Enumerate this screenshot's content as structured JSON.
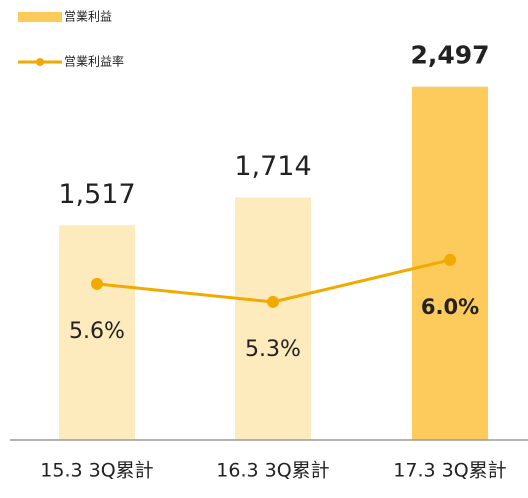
{
  "chart_data": {
    "type": "bar-line",
    "categories": [
      "15.3 3Q累計",
      "16.3 3Q累計",
      "17.3 3Q累計"
    ],
    "series": [
      {
        "name": "営業利益",
        "type": "bar",
        "colors": [
          "#fdebbd",
          "#fdebbd",
          "#fccb5c"
        ],
        "values": [
          1517,
          1714,
          2497
        ],
        "value_labels": [
          "1,517",
          "1,714",
          "2,497"
        ],
        "bold": [
          false,
          false,
          true
        ]
      },
      {
        "name": "営業利益率",
        "type": "line",
        "axis": "y2",
        "color": "#f2a900",
        "values": [
          5.6,
          5.3,
          6.0
        ],
        "value_labels": [
          "5.6%",
          "5.3%",
          "6.0%"
        ],
        "bold": [
          false,
          false,
          true
        ]
      }
    ],
    "ylim": [
      0,
      3110
    ],
    "y2lim": [
      3.0,
      10.33
    ]
  }
}
